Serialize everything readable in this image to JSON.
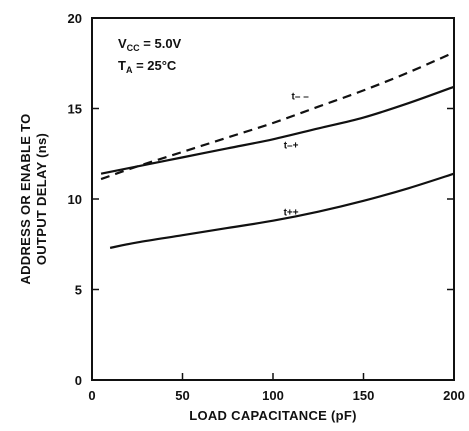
{
  "chart_data": {
    "type": "line",
    "title": "",
    "xlabel": "LOAD CAPACITANCE (pF)",
    "ylabel_lines": [
      "ADDRESS OR ENABLE TO",
      "OUTPUT DELAY (ns)"
    ],
    "xlim": [
      0,
      200
    ],
    "ylim": [
      0,
      20
    ],
    "x_ticks": [
      0,
      50,
      100,
      150,
      200
    ],
    "x_tick_labels": [
      "0",
      "50",
      "100",
      "150",
      "200"
    ],
    "y_ticks": [
      0,
      5,
      10,
      15,
      20
    ],
    "y_tick_labels": [
      "0",
      "5",
      "10",
      "15",
      "20"
    ],
    "grid": false,
    "conditions": {
      "vcc": "V",
      "vcc_sub": "CC",
      "vcc_value": " = 5.0V",
      "ta": "T",
      "ta_sub": "A",
      "ta_value": " = 25°C"
    },
    "series": [
      {
        "label": "t– –",
        "style": "dashed",
        "color": "#111111",
        "x": [
          5,
          25,
          50,
          75,
          100,
          125,
          150,
          175,
          200
        ],
        "y": [
          11.1,
          11.8,
          12.6,
          13.4,
          14.2,
          15.1,
          16.0,
          17.0,
          18.1
        ]
      },
      {
        "label": "t–+",
        "style": "solid",
        "color": "#111111",
        "x": [
          5,
          25,
          50,
          75,
          100,
          125,
          150,
          175,
          200
        ],
        "y": [
          11.4,
          11.8,
          12.3,
          12.8,
          13.3,
          13.9,
          14.5,
          15.3,
          16.2
        ]
      },
      {
        "label": "t++",
        "style": "solid",
        "color": "#111111",
        "x": [
          10,
          25,
          50,
          75,
          100,
          125,
          150,
          175,
          200
        ],
        "y": [
          7.3,
          7.6,
          8.0,
          8.4,
          8.8,
          9.3,
          9.9,
          10.6,
          11.4
        ]
      }
    ]
  }
}
